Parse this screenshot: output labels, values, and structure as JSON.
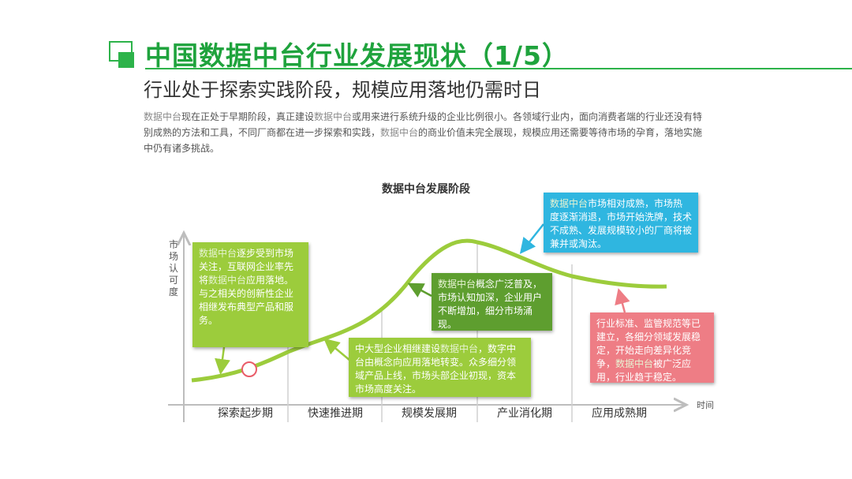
{
  "header": {
    "title": "中国数据中台行业发展现状（1/5）",
    "subtitle": "行业处于探索实践阶段，规模应用落地仍需时日"
  },
  "body": {
    "p1": "数据中台",
    "p2": "现在正处于早期阶段，真正建设",
    "p3": "数据中台",
    "p4": "或用来进行系统升级的企业比例很小。各领域行业内，面向消费者端的行业还没有特别成熟的方法和工具，不同厂商都在进一步探索和实践，",
    "p5": "数据中台",
    "p6": "的商业价值未完全展现，规模应用还需要等待市场的孕育，落地实施中仍有诸多挑战。"
  },
  "diagram": {
    "title": "数据中台发展阶段",
    "y_label": "市场认可度",
    "x_unit": "时间",
    "stages": [
      "探索起步期",
      "快速推进期",
      "规模发展期",
      "产业消化期",
      "应用成熟期"
    ],
    "colors": {
      "curve": "#9ccc3c",
      "box_light": "#9ccc3c",
      "box_dark": "#5e9e2f",
      "box_blue": "#2fb6e0",
      "box_red": "#ee7d85",
      "marker": "#e95c68"
    },
    "boxes": [
      {
        "hl": "数据中台",
        "text": "逐步受到市场关注，互联网企业率先将",
        "hl2": "数据中台",
        "text2": "应用落地。与之相关的创新性企业相继发布典型产品和服务。"
      },
      {
        "hl": "数据中台",
        "text": "概念广泛普及，市场认知加深，企业用户不断增加，细分市场涌现。"
      },
      {
        "text": "中大型企业相继建设",
        "hl": "数据中台",
        "text2": "，数字中台由概念向应用落地转变。众多细分领域产品上线，市场头部企业初现，资本市场高度关注。"
      },
      {
        "hl": "数据中台",
        "text": "市场相对成熟，市场热度逐渐消退，市场开始洗牌，技术不成熟、发展规模较小的厂商将被兼并或淘汰。"
      },
      {
        "text": "行业标准、监管规范等已建立，各细分领域发展稳定，开始走向差异化竞争，",
        "hl": "数据中台",
        "text2": "被广泛应用，行业趋于稳定。"
      }
    ]
  }
}
